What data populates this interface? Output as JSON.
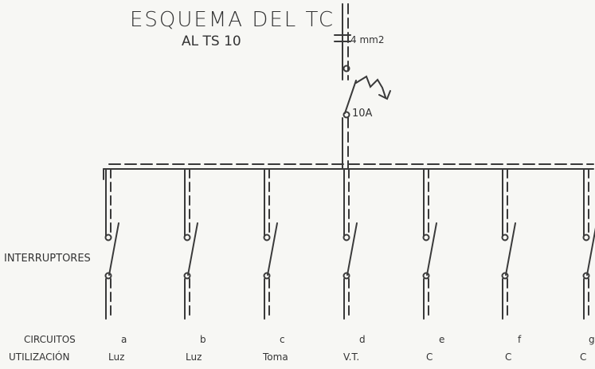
{
  "title": "ESQUEMA  DEL  TC",
  "subtitle": "AL TS 10",
  "main_line": {
    "cable_label": "4 mm2",
    "breaker_rating": "10A"
  },
  "switch_label": "INTERRUPTORES",
  "rows": {
    "circuits_label": "CIRCUITOS",
    "usage_label": "UTILIZACIÓN"
  },
  "circuits": [
    {
      "id": "a",
      "usage": "Luz"
    },
    {
      "id": "b",
      "usage": "Luz"
    },
    {
      "id": "c",
      "usage": "Toma"
    },
    {
      "id": "d",
      "usage": "V.T."
    },
    {
      "id": "e",
      "usage": "C"
    },
    {
      "id": "f",
      "usage": "C"
    },
    {
      "id": "g",
      "usage": "C"
    }
  ],
  "colors": {
    "ink": "#3a3a3a",
    "background": "#f7f7f4"
  }
}
